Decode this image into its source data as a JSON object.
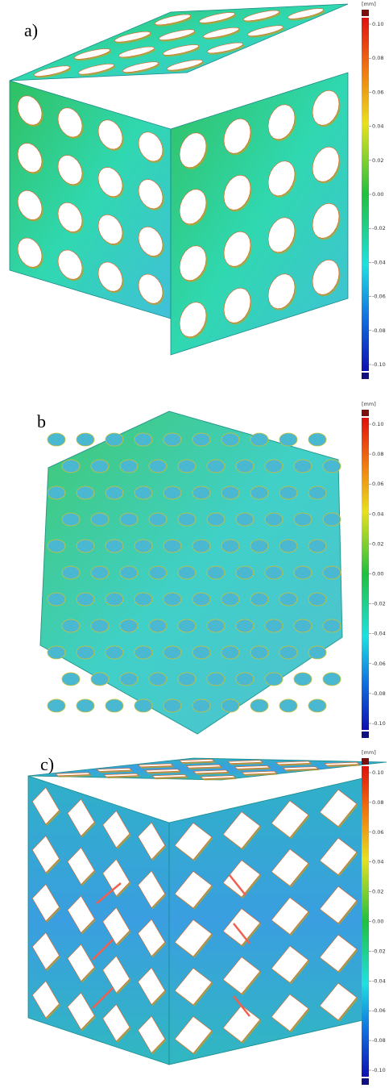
{
  "panels": [
    {
      "label": "a)",
      "colorbar": {
        "unit": "[mm]",
        "ticks": [
          "0.10",
          "0.08",
          "0.06",
          "0.04",
          "0.02",
          "0.00",
          "-0.02",
          "-0.04",
          "-0.06",
          "-0.08",
          "-0.10"
        ]
      }
    },
    {
      "label": "b",
      "colorbar": {
        "unit": "[mm]",
        "ticks": [
          "0.10",
          "0.08",
          "0.06",
          "0.04",
          "0.02",
          "0.00",
          "-0.02",
          "-0.04",
          "-0.06",
          "-0.08",
          "-0.10"
        ]
      }
    },
    {
      "label": "c)",
      "colorbar": {
        "unit": "[mm]",
        "ticks": [
          "0.10",
          "0.08",
          "0.06",
          "0.04",
          "0.02",
          "0.00",
          "-0.02",
          "-0.04",
          "-0.06",
          "-0.08",
          "-0.10"
        ]
      }
    }
  ]
}
